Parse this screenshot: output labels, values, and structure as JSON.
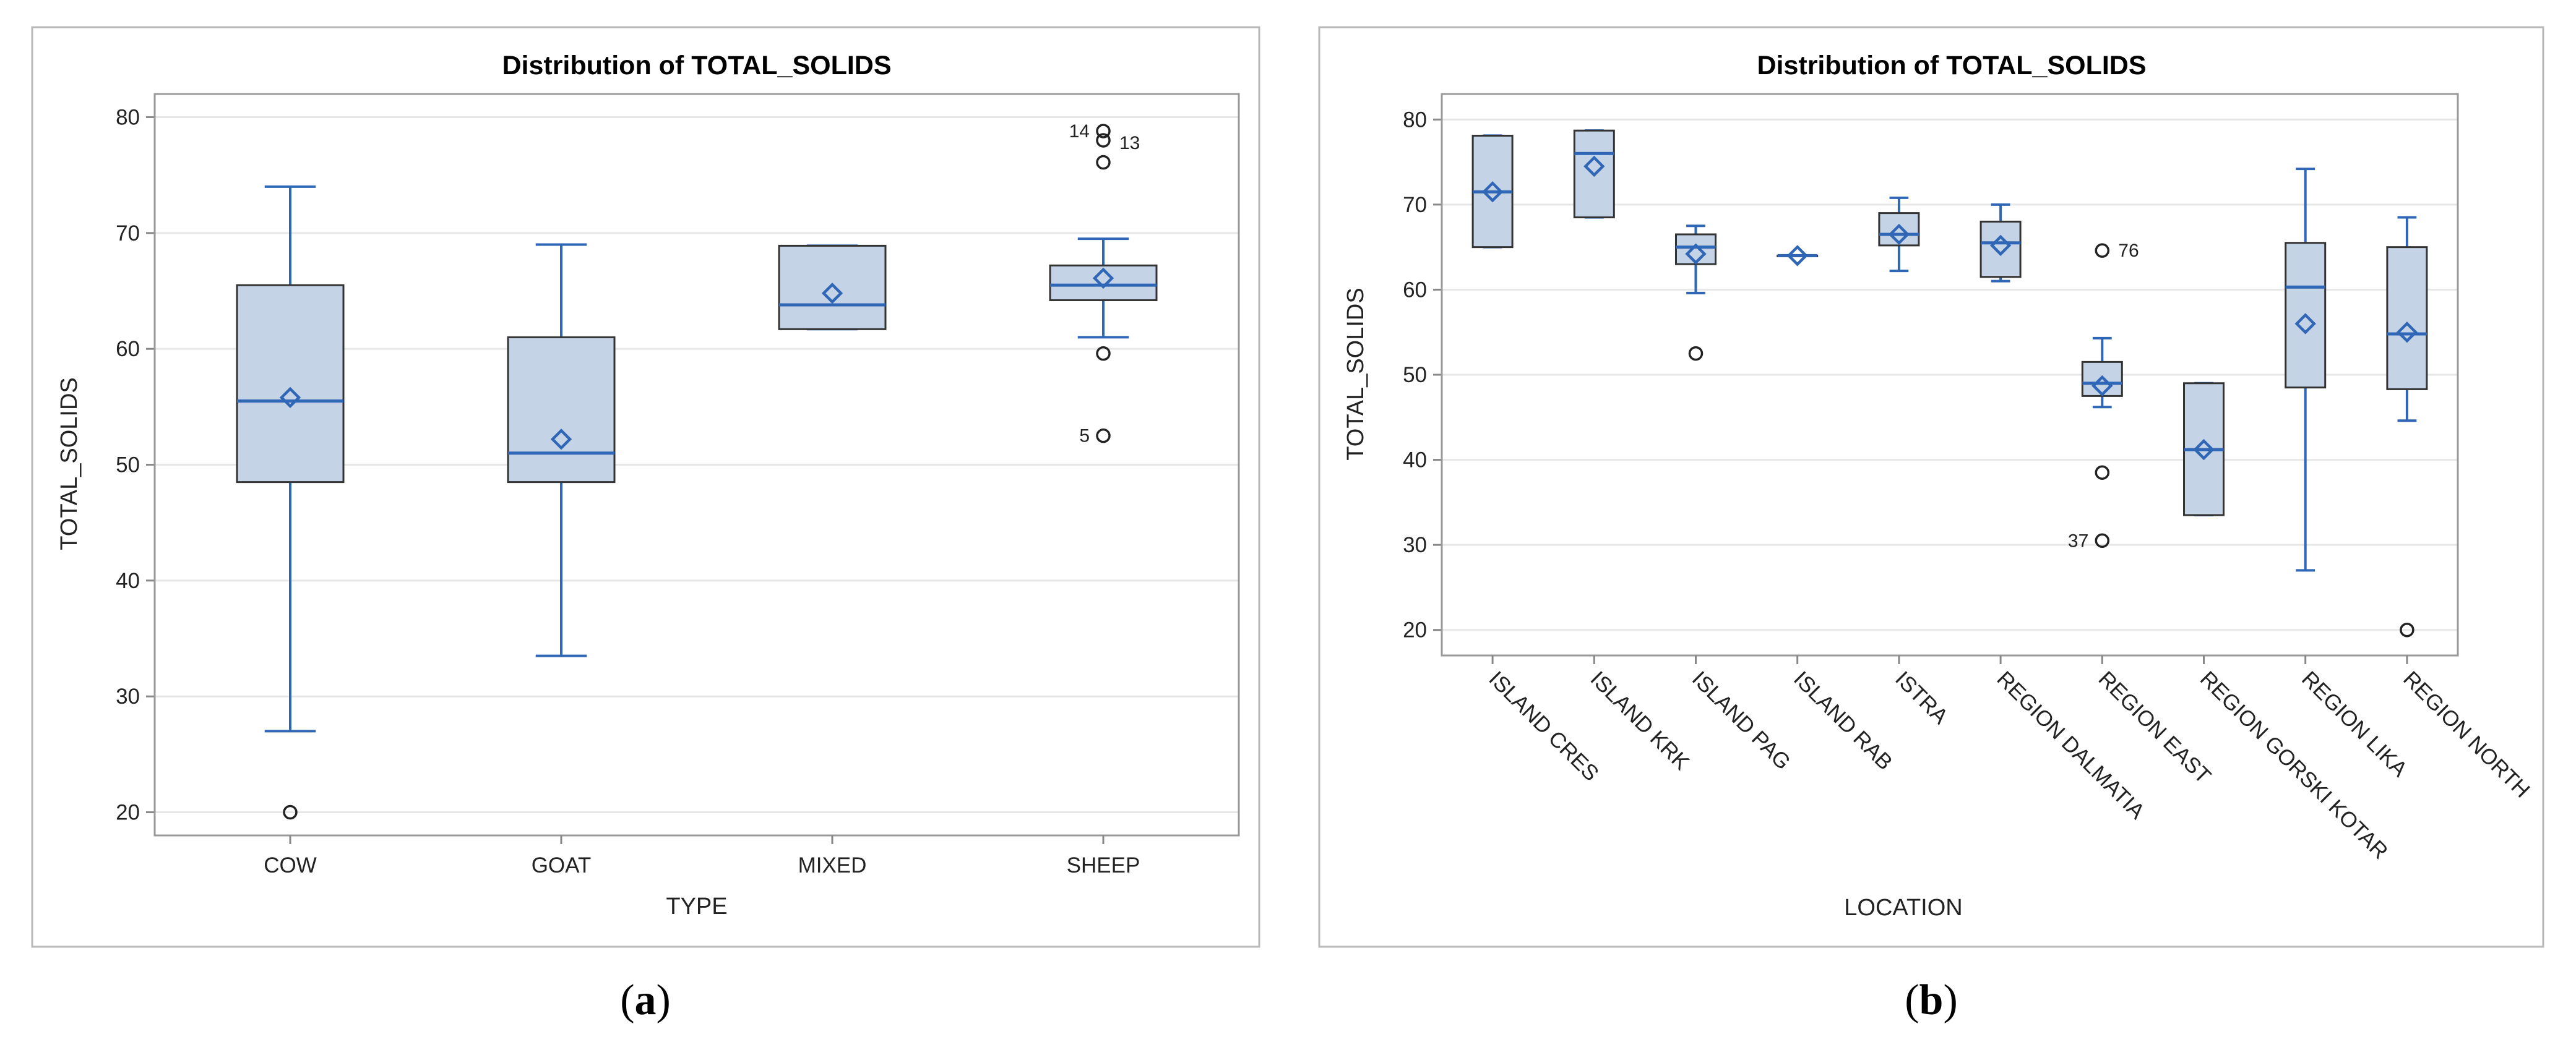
{
  "captions": [
    "(a)",
    "(b)"
  ],
  "colors": {
    "box_fill": "#c5d3e6",
    "accent": "#2f66b5",
    "frame": "#b9b9b9"
  },
  "chart_data": [
    {
      "type": "boxplot",
      "title": "Distribution of TOTAL_SOLIDS",
      "xlabel": "TYPE",
      "ylabel": "TOTAL_SOLIDS",
      "ylim": [
        18,
        82
      ],
      "yticks": [
        20,
        30,
        40,
        50,
        60,
        70,
        80
      ],
      "grid": true,
      "categories": [
        "COW",
        "GOAT",
        "MIXED",
        "SHEEP"
      ],
      "boxes": [
        {
          "category": "COW",
          "whisker_low": 27.0,
          "q1": 48.5,
          "median": 55.5,
          "q3": 65.5,
          "whisker_high": 74.0,
          "mean": 55.8,
          "outliers": [
            {
              "value": 20.0
            }
          ]
        },
        {
          "category": "GOAT",
          "whisker_low": 33.5,
          "q1": 48.5,
          "median": 51.0,
          "q3": 61.0,
          "whisker_high": 69.0,
          "mean": 52.2,
          "outliers": []
        },
        {
          "category": "MIXED",
          "whisker_low": 61.7,
          "q1": 61.7,
          "median": 63.8,
          "q3": 68.9,
          "whisker_high": 68.9,
          "mean": 64.8,
          "outliers": []
        },
        {
          "category": "SHEEP",
          "whisker_low": 61.0,
          "q1": 64.2,
          "median": 65.5,
          "q3": 67.2,
          "whisker_high": 69.5,
          "mean": 66.1,
          "outliers": [
            {
              "value": 78.8,
              "label": "14"
            },
            {
              "value": 78.0,
              "label": "13"
            },
            {
              "value": 76.1
            },
            {
              "value": 59.6
            },
            {
              "value": 52.5,
              "label": "5"
            }
          ]
        }
      ]
    },
    {
      "type": "boxplot",
      "title": "Distribution of TOTAL_SOLIDS",
      "xlabel": "LOCATION",
      "ylabel": "TOTAL_SOLIDS",
      "ylim": [
        17,
        83
      ],
      "yticks": [
        20,
        30,
        40,
        50,
        60,
        70,
        80
      ],
      "grid": true,
      "categories": [
        "ISLAND CRES",
        "ISLAND KRK",
        "ISLAND PAG",
        "ISLAND RAB",
        "ISTRA",
        "REGION DALMATIA",
        "REGION EAST",
        "REGION GORSKI KOTAR",
        "REGION LIKA",
        "REGION NORTH"
      ],
      "boxes": [
        {
          "category": "ISLAND CRES",
          "whisker_low": 65.0,
          "q1": 65.0,
          "median": 71.5,
          "q3": 78.1,
          "whisker_high": 78.1,
          "mean": 71.5,
          "outliers": []
        },
        {
          "category": "ISLAND KRK",
          "whisker_low": 68.5,
          "q1": 68.5,
          "median": 76.0,
          "q3": 78.7,
          "whisker_high": 78.7,
          "mean": 74.5,
          "outliers": []
        },
        {
          "category": "ISLAND PAG",
          "whisker_low": 59.6,
          "q1": 63.0,
          "median": 65.0,
          "q3": 66.5,
          "whisker_high": 67.5,
          "mean": 64.2,
          "outliers": [
            {
              "value": 52.5
            }
          ]
        },
        {
          "category": "ISLAND RAB",
          "whisker_low": 64.0,
          "q1": 64.0,
          "median": 64.0,
          "q3": 64.0,
          "whisker_high": 64.0,
          "mean": 64.0,
          "outliers": []
        },
        {
          "category": "ISTRA",
          "whisker_low": 62.2,
          "q1": 65.2,
          "median": 66.5,
          "q3": 69.0,
          "whisker_high": 70.8,
          "mean": 66.5,
          "outliers": []
        },
        {
          "category": "REGION DALMATIA",
          "whisker_low": 61.0,
          "q1": 61.5,
          "median": 65.5,
          "q3": 68.0,
          "whisker_high": 70.0,
          "mean": 65.2,
          "outliers": []
        },
        {
          "category": "REGION EAST",
          "whisker_low": 46.2,
          "q1": 47.5,
          "median": 49.0,
          "q3": 51.5,
          "whisker_high": 54.3,
          "mean": 48.7,
          "outliers": [
            {
              "value": 64.6,
              "label": "76"
            },
            {
              "value": 38.5
            },
            {
              "value": 30.5,
              "label": "37"
            }
          ]
        },
        {
          "category": "REGION GORSKI KOTAR",
          "whisker_low": 33.5,
          "q1": 33.5,
          "median": 41.2,
          "q3": 49.0,
          "whisker_high": 49.0,
          "mean": 41.2,
          "outliers": []
        },
        {
          "category": "REGION LIKA",
          "whisker_low": 27.0,
          "q1": 48.5,
          "median": 60.3,
          "q3": 65.5,
          "whisker_high": 74.2,
          "mean": 56.0,
          "outliers": []
        },
        {
          "category": "REGION NORTH",
          "whisker_low": 44.6,
          "q1": 48.3,
          "median": 54.8,
          "q3": 65.0,
          "whisker_high": 68.5,
          "mean": 55.0,
          "outliers": [
            {
              "value": 20.0
            }
          ]
        }
      ]
    }
  ]
}
